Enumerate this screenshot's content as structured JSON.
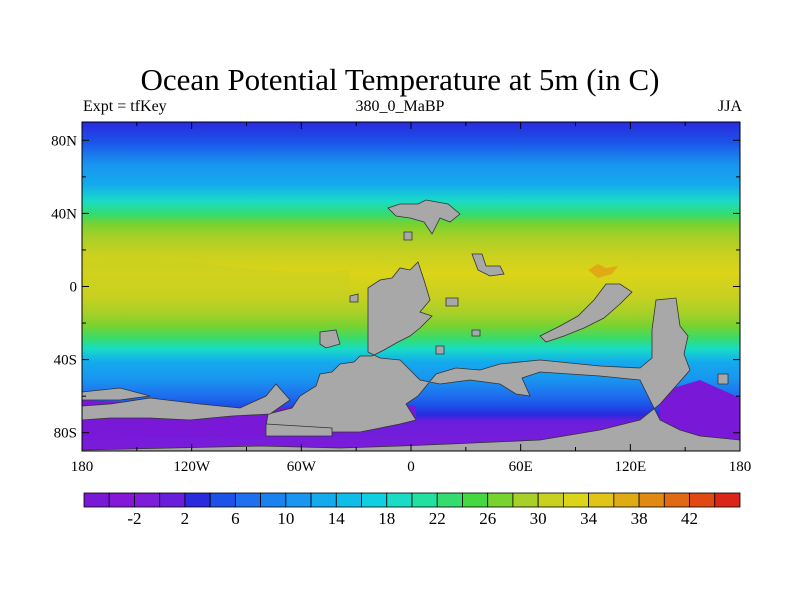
{
  "title": "Ocean Potential Temperature at 5m (in C)",
  "left_string": "Expt = tfKey",
  "center_string": "380_0_MaBP",
  "right_string": "JJA",
  "x_ticks": [
    "180",
    "120W",
    "60W",
    "0",
    "60E",
    "120E",
    "180"
  ],
  "y_ticks": [
    "80N",
    "40N",
    "0",
    "40S",
    "80S"
  ],
  "colorbar": {
    "colors": [
      "#7a18d8",
      "#8417d8",
      "#7e1cda",
      "#6a1edc",
      "#2a2adf",
      "#1c52e8",
      "#1e70ee",
      "#1a82ee",
      "#1896f0",
      "#14aaee",
      "#10bde8",
      "#10cfe0",
      "#18dcc6",
      "#22e0a0",
      "#34dc70",
      "#46d840",
      "#78d230",
      "#a8d028",
      "#c8d020",
      "#dcd418",
      "#e0c418",
      "#e0aa14",
      "#e08a14",
      "#e06a14",
      "#e04814",
      "#dc2418"
    ],
    "labels": [
      "-2",
      "2",
      "6",
      "10",
      "14",
      "18",
      "22",
      "26",
      "30",
      "34",
      "38",
      "42"
    ]
  },
  "land_color": "#a8a8a8"
}
